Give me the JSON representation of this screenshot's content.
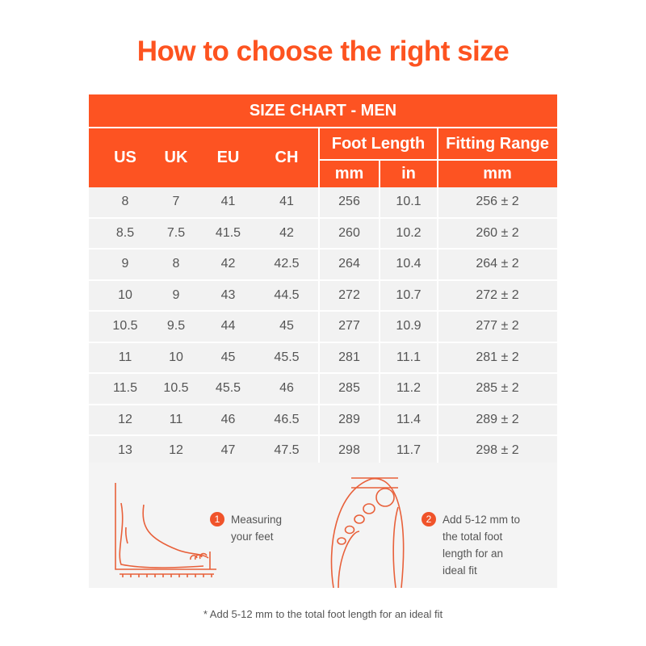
{
  "title": "How to choose the right size",
  "table": {
    "caption": "SIZE CHART - MEN",
    "headers": {
      "us": "US",
      "uk": "UK",
      "eu": "EU",
      "ch": "CH",
      "foot_length": "Foot Length",
      "fitting_range": "Fitting Range",
      "mm": "mm",
      "in": "in",
      "fit_mm": "mm"
    },
    "rows": [
      [
        "8",
        "7",
        "41",
        "41",
        "256",
        "10.1",
        "256 ± 2"
      ],
      [
        "8.5",
        "7.5",
        "41.5",
        "42",
        "260",
        "10.2",
        "260 ± 2"
      ],
      [
        "9",
        "8",
        "42",
        "42.5",
        "264",
        "10.4",
        "264 ± 2"
      ],
      [
        "10",
        "9",
        "43",
        "44.5",
        "272",
        "10.7",
        "272 ± 2"
      ],
      [
        "10.5",
        "9.5",
        "44",
        "45",
        "277",
        "10.9",
        "277 ± 2"
      ],
      [
        "11",
        "10",
        "45",
        "45.5",
        "281",
        "11.1",
        "281 ± 2"
      ],
      [
        "11.5",
        "10.5",
        "45.5",
        "46",
        "285",
        "11.2",
        "285 ± 2"
      ],
      [
        "12",
        "11",
        "46",
        "46.5",
        "289",
        "11.4",
        "289 ± 2"
      ],
      [
        "13",
        "12",
        "47",
        "47.5",
        "298",
        "11.7",
        "298 ± 2"
      ]
    ]
  },
  "steps": [
    {
      "num": "1",
      "text": "Measuring your feet"
    },
    {
      "num": "2",
      "text": "Add 5-12 mm to the total foot length for an ideal fit"
    }
  ],
  "footnote": "* Add 5-12 mm to the total foot length for an ideal fit",
  "colors": {
    "accent": "#fd5322",
    "row_bg": "#f2f2f2"
  }
}
